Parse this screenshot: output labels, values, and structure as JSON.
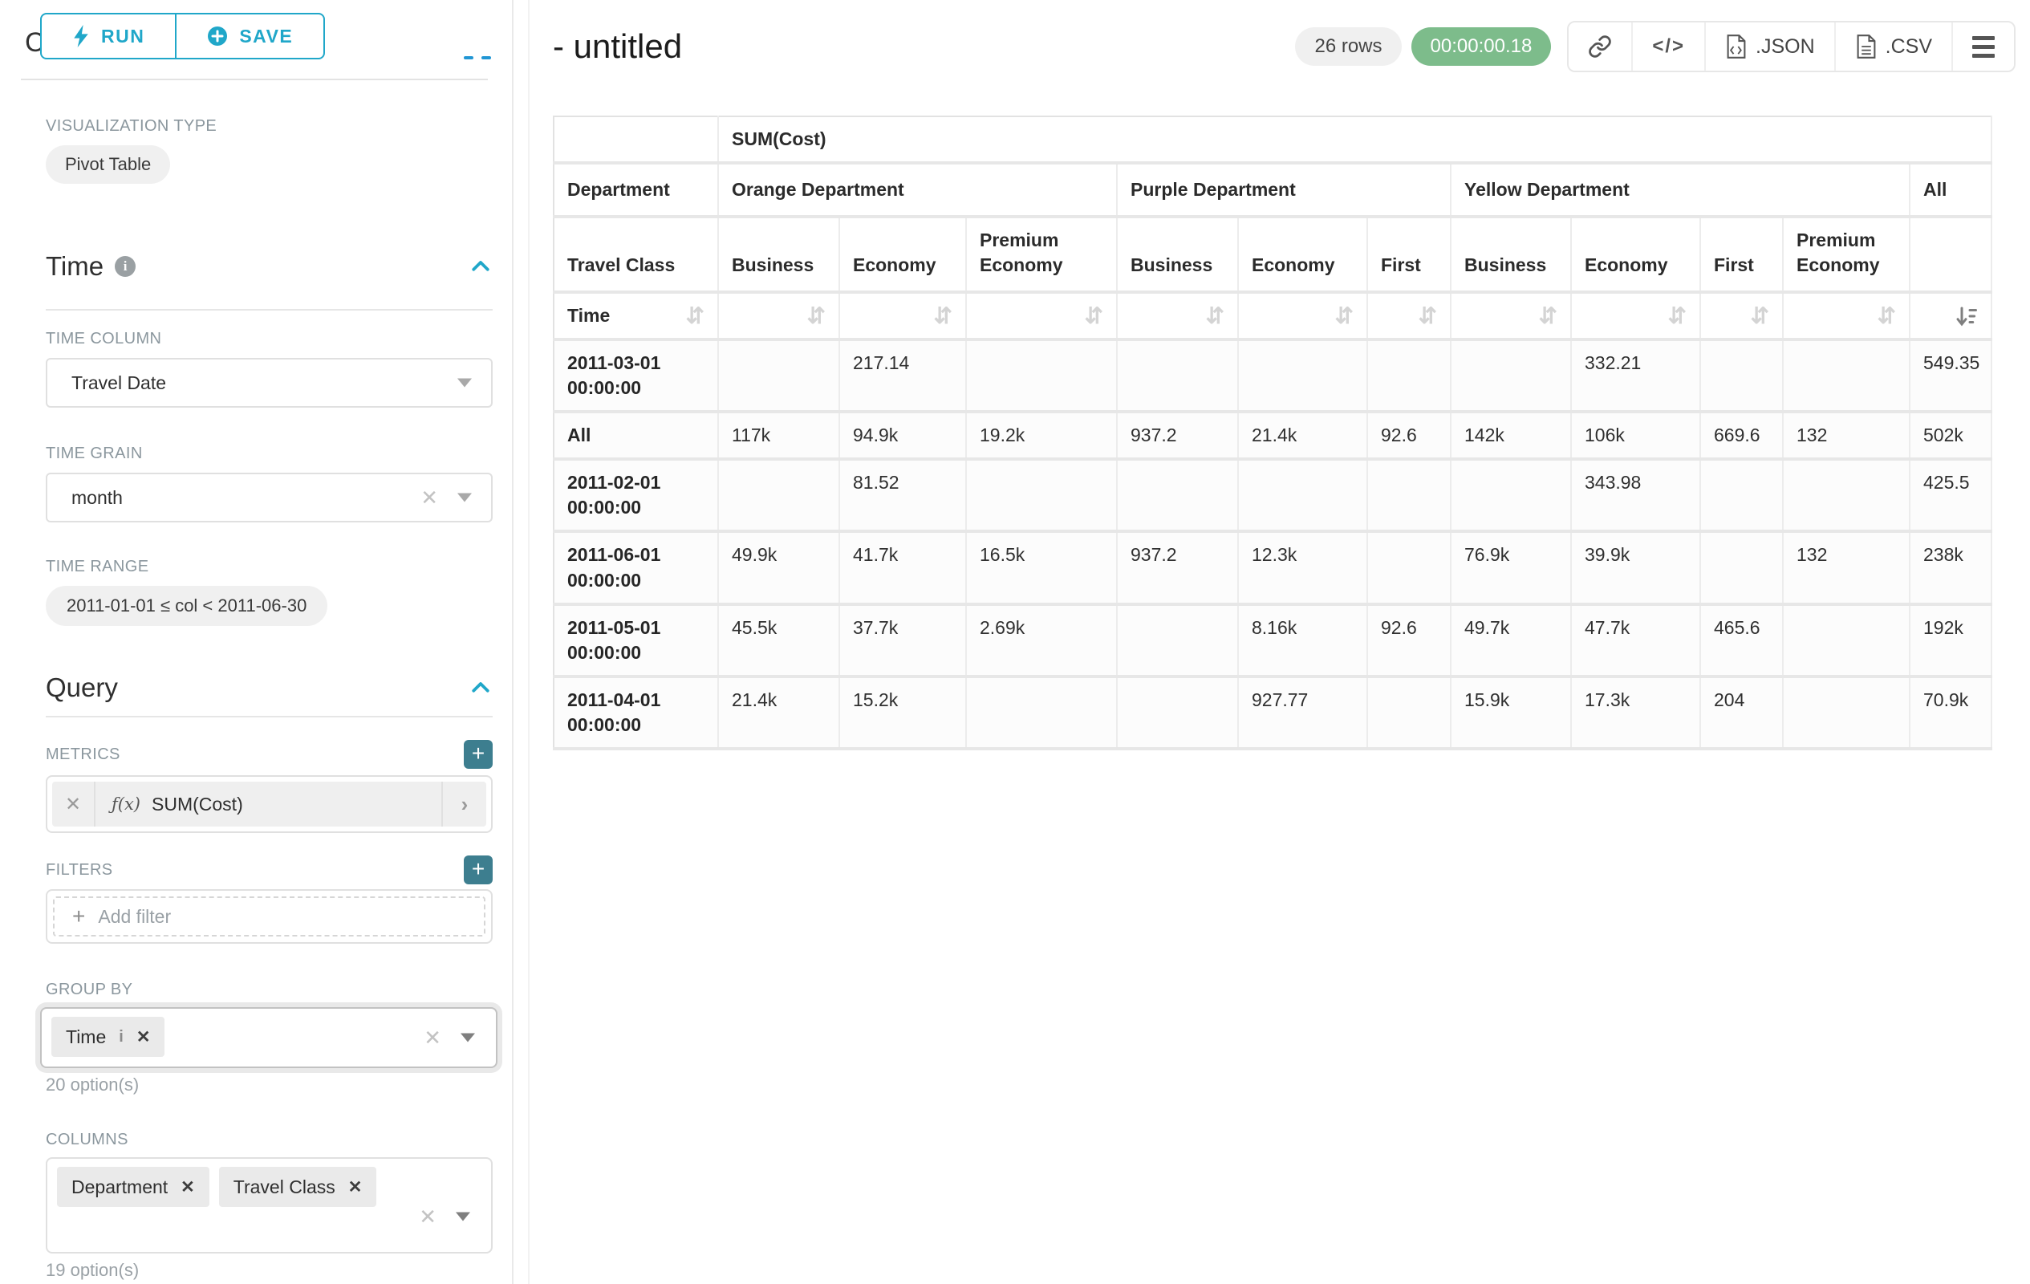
{
  "colors": {
    "primary": "#20a7c9",
    "add_button": "#3d7e8f",
    "timer_badge_bg": "#7dbc8b",
    "timer_badge_text": "#ffffff",
    "row_count_badge_bg": "#f0f0f0"
  },
  "sidebar": {
    "run_label": "RUN",
    "save_label": "SAVE",
    "chart_type_heading": "Chart Type",
    "visualization_type_label": "VISUALIZATION TYPE",
    "visualization_type_value": "Pivot Table",
    "time": {
      "heading": "Time",
      "time_column_label": "TIME COLUMN",
      "time_column_value": "Travel Date",
      "time_grain_label": "TIME GRAIN",
      "time_grain_value": "month",
      "time_range_label": "TIME RANGE",
      "time_range_value": "2011-01-01 ≤ col < 2011-06-30"
    },
    "query": {
      "heading": "Query",
      "metrics_label": "METRICS",
      "metric_prefix": "ƒ(x)",
      "metric_value": "SUM(Cost)",
      "filters_label": "FILTERS",
      "add_filter_label": "Add filter",
      "group_by_label": "GROUP BY",
      "group_by_tags": [
        "Time"
      ],
      "group_by_hint": "20 option(s)",
      "columns_label": "COLUMNS",
      "columns_tags": [
        "Department",
        "Travel Class"
      ],
      "columns_hint": "19 option(s)"
    }
  },
  "header": {
    "title": "- untitled",
    "row_count_badge": "26 rows",
    "timer_badge": "00:00:00.18",
    "code_button": "</>",
    "json_button": ".JSON",
    "csv_button": ".CSV"
  },
  "chart_data": {
    "type": "table",
    "metric_header": "SUM(Cost)",
    "row_axis_labels": [
      "Department",
      "Travel Class",
      "Time"
    ],
    "column_groups": [
      {
        "label": "Orange Department",
        "columns": [
          "Business",
          "Economy",
          "Premium Economy"
        ]
      },
      {
        "label": "Purple Department",
        "columns": [
          "Business",
          "Economy",
          "First"
        ]
      },
      {
        "label": "Yellow Department",
        "columns": [
          "Business",
          "Economy",
          "First",
          "Premium Economy"
        ]
      },
      {
        "label": "All",
        "columns": [
          ""
        ]
      }
    ],
    "rows": [
      {
        "label": "2011-03-01 00:00:00",
        "values": [
          "",
          "217.14",
          "",
          "",
          "",
          "",
          "",
          "332.21",
          "",
          "",
          "549.35"
        ]
      },
      {
        "label": "All",
        "values": [
          "117k",
          "94.9k",
          "19.2k",
          "937.2",
          "21.4k",
          "92.6",
          "142k",
          "106k",
          "669.6",
          "132",
          "502k"
        ]
      },
      {
        "label": "2011-02-01 00:00:00",
        "values": [
          "",
          "81.52",
          "",
          "",
          "",
          "",
          "",
          "343.98",
          "",
          "",
          "425.5"
        ]
      },
      {
        "label": "2011-06-01 00:00:00",
        "values": [
          "49.9k",
          "41.7k",
          "16.5k",
          "937.2",
          "12.3k",
          "",
          "76.9k",
          "39.9k",
          "",
          "132",
          "238k"
        ]
      },
      {
        "label": "2011-05-01 00:00:00",
        "values": [
          "45.5k",
          "37.7k",
          "2.69k",
          "",
          "8.16k",
          "92.6",
          "49.7k",
          "47.7k",
          "465.6",
          "",
          "192k"
        ]
      },
      {
        "label": "2011-04-01 00:00:00",
        "values": [
          "21.4k",
          "15.2k",
          "",
          "",
          "927.77",
          "",
          "15.9k",
          "17.3k",
          "204",
          "",
          "70.9k"
        ]
      }
    ],
    "sort": {
      "column": "All",
      "direction": "desc"
    }
  }
}
